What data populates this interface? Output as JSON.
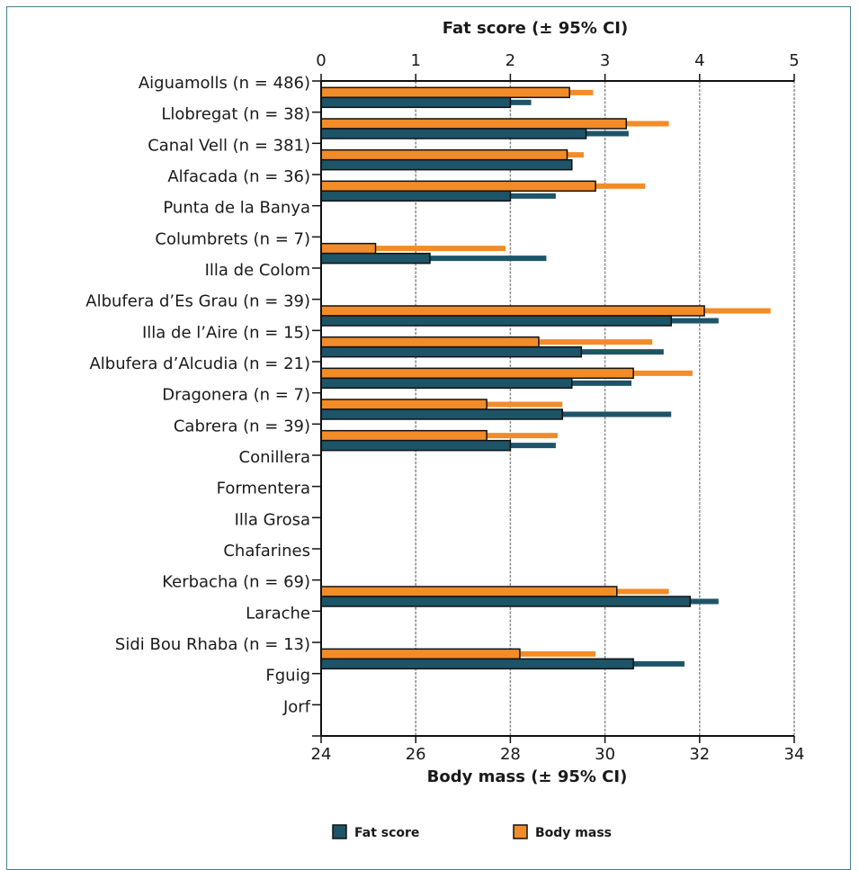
{
  "chart_data": {
    "type": "bar",
    "orientation": "horizontal",
    "categories": [
      "Aiguamolls (n = 486)",
      "Llobregat (n = 38)",
      "Canal Vell (n = 381)",
      "Alfacada (n = 36)",
      "Punta de la Banya",
      "Columbrets (n = 7)",
      "Illa de Colom",
      "Albufera d’Es Grau (n = 39)",
      "Illa de l’Aire (n = 15)",
      "Albufera d’Alcudia (n = 21)",
      "Dragonera (n = 7)",
      "Cabrera (n = 39)",
      "Conillera",
      "Formentera",
      "Illa Grosa",
      "Chafarines",
      "Kerbacha (n = 69)",
      "Larache",
      "Sidi Bou Rhaba (n = 13)",
      "Fguig",
      "Jorf"
    ],
    "top_axis": {
      "title": "Fat score (± 95% CI)",
      "ticks": [
        "0",
        "1",
        "2",
        "3",
        "4",
        "5"
      ],
      "range": [
        0,
        5
      ]
    },
    "bottom_axis": {
      "title": "Body mass (± 95% CI)",
      "ticks": [
        "24",
        "26",
        "28",
        "30",
        "32",
        "34"
      ],
      "range": [
        24,
        34
      ]
    },
    "series": [
      {
        "name": "Fat score",
        "axis": "top",
        "color": "#1d5468",
        "values": [
          2.0,
          2.8,
          2.65,
          2.0,
          null,
          1.15,
          null,
          3.7,
          2.75,
          2.65,
          2.55,
          2.0,
          null,
          null,
          null,
          null,
          3.9,
          null,
          3.3,
          null,
          null
        ],
        "ci_upper": [
          2.22,
          3.25,
          2.65,
          2.48,
          null,
          2.38,
          null,
          4.2,
          3.62,
          3.28,
          3.7,
          2.48,
          null,
          null,
          null,
          null,
          4.2,
          null,
          3.84,
          null,
          null
        ]
      },
      {
        "name": "Body mass",
        "axis": "bottom",
        "color": "#f28c28",
        "values": [
          29.25,
          30.45,
          29.2,
          29.8,
          null,
          25.15,
          null,
          32.1,
          28.6,
          30.6,
          27.5,
          27.5,
          null,
          null,
          null,
          null,
          30.25,
          null,
          28.2,
          null,
          null
        ],
        "ci_upper": [
          29.75,
          31.35,
          29.55,
          30.85,
          null,
          27.9,
          null,
          33.5,
          31.0,
          31.85,
          29.1,
          29.0,
          null,
          null,
          null,
          null,
          31.35,
          null,
          29.8,
          null,
          null
        ]
      }
    ],
    "grid": true,
    "legend": {
      "placement": "bottom",
      "items": [
        "Fat score",
        "Body mass"
      ]
    }
  }
}
